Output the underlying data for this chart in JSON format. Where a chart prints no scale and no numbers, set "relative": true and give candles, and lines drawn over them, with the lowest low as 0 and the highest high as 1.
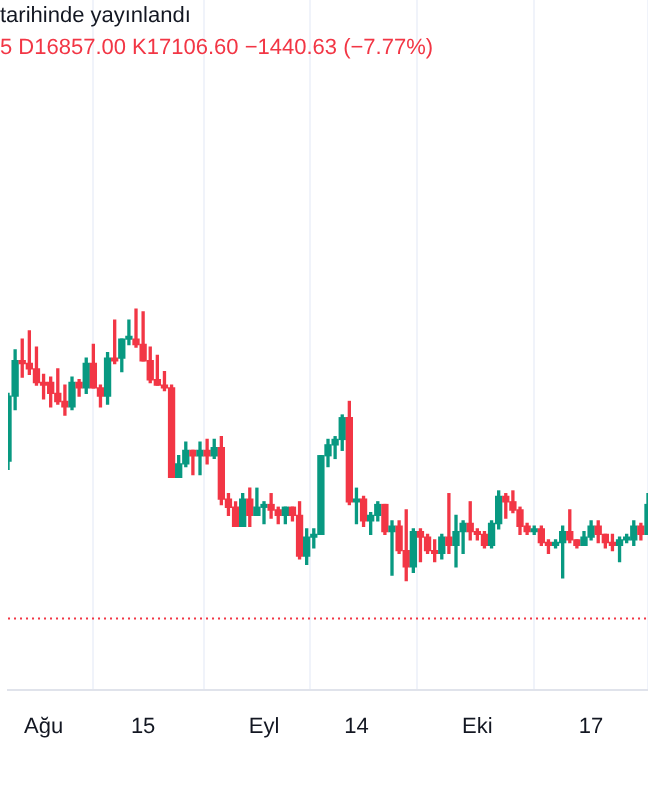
{
  "chart_data": {
    "type": "candlestick",
    "relative": true,
    "grid": "x",
    "annotations": [
      "tarihinde yayınlandı",
      "5 D16857.00 K17106.60 −1440.63 (−7.77%)"
    ],
    "xlim": [
      "--07-27",
      "--10-25"
    ],
    "xticks": [
      {
        "value": "--08-01",
        "label": "Ağu"
      },
      {
        "value": "--08-15",
        "label": "15"
      },
      {
        "value": "--09-01",
        "label": "Eyl"
      },
      {
        "value": "--09-14",
        "label": "14"
      },
      {
        "value": "--10-01",
        "label": "Eki"
      },
      {
        "value": "--10-17",
        "label": "17"
      }
    ],
    "ref_lines": [
      {
        "axis": "y",
        "value": -0.14,
        "color": "#f23645",
        "line_style": "dotted"
      }
    ],
    "x": [
      "--07-27",
      "--07-28",
      "--07-29",
      "--07-30",
      "--07-31",
      "--08-01",
      "--08-02",
      "--08-03",
      "--08-04",
      "--08-05",
      "--08-06",
      "--08-07",
      "--08-08",
      "--08-09",
      "--08-10",
      "--08-11",
      "--08-12",
      "--08-13",
      "--08-14",
      "--08-15",
      "--08-16",
      "--08-17",
      "--08-18",
      "--08-19",
      "--08-20",
      "--08-21",
      "--08-22",
      "--08-23",
      "--08-24",
      "--08-25",
      "--08-26",
      "--08-27",
      "--08-28",
      "--08-29",
      "--08-30",
      "--08-31",
      "--09-01",
      "--09-02",
      "--09-03",
      "--09-04",
      "--09-05",
      "--09-06",
      "--09-07",
      "--09-08",
      "--09-09",
      "--09-10",
      "--09-11",
      "--09-12",
      "--09-13",
      "--09-14",
      "--09-15",
      "--09-16",
      "--09-17",
      "--09-18",
      "--09-19",
      "--09-20",
      "--09-21",
      "--09-22",
      "--09-23",
      "--09-24",
      "--09-25",
      "--09-26",
      "--09-27",
      "--09-28",
      "--09-29",
      "--09-30",
      "--10-01",
      "--10-02",
      "--10-03",
      "--10-04",
      "--10-05",
      "--10-06",
      "--10-07",
      "--10-08",
      "--10-09",
      "--10-10",
      "--10-11",
      "--10-12",
      "--10-13",
      "--10-14",
      "--10-15",
      "--10-16",
      "--10-17",
      "--10-18",
      "--10-19",
      "--10-20",
      "--10-21",
      "--10-22",
      "--10-23",
      "--10-24",
      "--10-25"
    ],
    "ohlc": [
      [
        0.44,
        0.69,
        0.41,
        0.68
      ],
      [
        0.68,
        0.85,
        0.63,
        0.81
      ],
      [
        0.81,
        0.89,
        0.75,
        0.8
      ],
      [
        0.8,
        0.92,
        0.76,
        0.78
      ],
      [
        0.78,
        0.86,
        0.72,
        0.73
      ],
      [
        0.73,
        0.76,
        0.67,
        0.72
      ],
      [
        0.73,
        0.75,
        0.64,
        0.69
      ],
      [
        0.69,
        0.78,
        0.65,
        0.66
      ],
      [
        0.66,
        0.72,
        0.61,
        0.64
      ],
      [
        0.64,
        0.75,
        0.63,
        0.73
      ],
      [
        0.73,
        0.74,
        0.68,
        0.71
      ],
      [
        0.71,
        0.82,
        0.69,
        0.8
      ],
      [
        0.8,
        0.87,
        0.71,
        0.71
      ],
      [
        0.71,
        0.72,
        0.64,
        0.68
      ],
      [
        0.68,
        0.84,
        0.65,
        0.82
      ],
      [
        0.82,
        0.96,
        0.8,
        0.81
      ],
      [
        0.82,
        0.89,
        0.77,
        0.89
      ],
      [
        0.89,
        0.96,
        0.87,
        0.9
      ],
      [
        0.89,
        1,
        0.86,
        0.87
      ],
      [
        0.87,
        0.99,
        0.81,
        0.81
      ],
      [
        0.81,
        0.86,
        0.73,
        0.74
      ],
      [
        0.74,
        0.83,
        0.72,
        0.72
      ],
      [
        0.72,
        0.77,
        0.7,
        0.71
      ],
      [
        0.71,
        0.72,
        0.38,
        0.38
      ],
      [
        0.38,
        0.46,
        0.38,
        0.43
      ],
      [
        0.43,
        0.51,
        0.42,
        0.48
      ],
      [
        0.48,
        0.48,
        0.39,
        0.46
      ],
      [
        0.46,
        0.51,
        0.39,
        0.48
      ],
      [
        0.48,
        0.52,
        0.43,
        0.46
      ],
      [
        0.46,
        0.52,
        0.45,
        0.49
      ],
      [
        0.49,
        0.53,
        0.28,
        0.3
      ],
      [
        0.3,
        0.32,
        0.24,
        0.27
      ],
      [
        0.27,
        0.29,
        0.2,
        0.2
      ],
      [
        0.2,
        0.32,
        0.2,
        0.3
      ],
      [
        0.3,
        0.34,
        0.2,
        0.24
      ],
      [
        0.24,
        0.34,
        0.24,
        0.27
      ],
      [
        0.27,
        0.29,
        0.21,
        0.28
      ],
      [
        0.28,
        0.32,
        0.23,
        0.26
      ],
      [
        0.26,
        0.27,
        0.21,
        0.24
      ],
      [
        0.24,
        0.27,
        0.21,
        0.27
      ],
      [
        0.27,
        0.27,
        0.22,
        0.24
      ],
      [
        0.24,
        0.29,
        0.08,
        0.09
      ],
      [
        0.09,
        0.19,
        0.06,
        0.16
      ],
      [
        0.16,
        0.19,
        0.12,
        0.17
      ],
      [
        0.17,
        0.46,
        0.17,
        0.46
      ],
      [
        0.46,
        0.52,
        0.42,
        0.5
      ],
      [
        0.5,
        0.53,
        0.45,
        0.52
      ],
      [
        0.52,
        0.61,
        0.48,
        0.6
      ],
      [
        0.6,
        0.66,
        0.28,
        0.29
      ],
      [
        0.29,
        0.34,
        0.21,
        0.3
      ],
      [
        0.3,
        0.31,
        0.2,
        0.22
      ],
      [
        0.22,
        0.25,
        0.17,
        0.24
      ],
      [
        0.24,
        0.29,
        0.22,
        0.28
      ],
      [
        0.28,
        0.28,
        0.17,
        0.18
      ],
      [
        0.18,
        0.22,
        0.02,
        0.2
      ],
      [
        0.2,
        0.22,
        0.1,
        0.11
      ],
      [
        0.11,
        0.26,
        0,
        0.05
      ],
      [
        0.05,
        0.19,
        0.03,
        0.18
      ],
      [
        0.18,
        0.19,
        0.07,
        0.16
      ],
      [
        0.16,
        0.17,
        0.1,
        0.11
      ],
      [
        0.11,
        0.15,
        0.07,
        0.1
      ],
      [
        0.1,
        0.17,
        0.08,
        0.16
      ],
      [
        0.16,
        0.32,
        0.1,
        0.13
      ],
      [
        0.13,
        0.24,
        0.05,
        0.18
      ],
      [
        0.18,
        0.22,
        0.1,
        0.21
      ],
      [
        0.21,
        0.29,
        0.15,
        0.18
      ],
      [
        0.18,
        0.19,
        0.15,
        0.17
      ],
      [
        0.17,
        0.18,
        0.12,
        0.13
      ],
      [
        0.13,
        0.22,
        0.12,
        0.21
      ],
      [
        0.21,
        0.33,
        0.19,
        0.31
      ],
      [
        0.31,
        0.32,
        0.23,
        0.29
      ],
      [
        0.29,
        0.33,
        0.25,
        0.26
      ],
      [
        0.26,
        0.27,
        0.17,
        0.2
      ],
      [
        0.2,
        0.21,
        0.17,
        0.18
      ],
      [
        0.18,
        0.2,
        0.17,
        0.19
      ],
      [
        0.19,
        0.2,
        0.13,
        0.14
      ],
      [
        0.14,
        0.15,
        0.1,
        0.13
      ],
      [
        0.13,
        0.15,
        0.12,
        0.14
      ],
      [
        0.14,
        0.2,
        0.01,
        0.18
      ],
      [
        0.18,
        0.26,
        0.14,
        0.15
      ],
      [
        0.15,
        0.15,
        0.12,
        0.13
      ],
      [
        0.13,
        0.18,
        0.13,
        0.16
      ],
      [
        0.16,
        0.22,
        0.15,
        0.2
      ],
      [
        0.2,
        0.22,
        0.14,
        0.17
      ],
      [
        0.17,
        0.17,
        0.12,
        0.14
      ],
      [
        0.14,
        0.17,
        0.11,
        0.13
      ],
      [
        0.13,
        0.16,
        0.07,
        0.15
      ],
      [
        0.15,
        0.17,
        0.14,
        0.16
      ],
      [
        0.15,
        0.22,
        0.13,
        0.2
      ],
      [
        0.2,
        0.21,
        0.15,
        0.17
      ],
      [
        0.17,
        0.32,
        0.17,
        0.28
      ]
    ],
    "colors": [
      "#089981",
      "#089981",
      "#f23645",
      "#f23645",
      "#f23645",
      "#f23645",
      "#f23645",
      "#f23645",
      "#f23645",
      "#089981",
      "#f23645",
      "#089981",
      "#f23645",
      "#f23645",
      "#089981",
      "#f23645",
      "#089981",
      "#089981",
      "#f23645",
      "#f23645",
      "#f23645",
      "#f23645",
      "#f23645",
      "#f23645",
      "#089981",
      "#089981",
      "#f23645",
      "#089981",
      "#f23645",
      "#089981",
      "#f23645",
      "#f23645",
      "#f23645",
      "#089981",
      "#f23645",
      "#089981",
      "#089981",
      "#f23645",
      "#f23645",
      "#089981",
      "#f23645",
      "#f23645",
      "#089981",
      "#089981",
      "#089981",
      "#089981",
      "#089981",
      "#089981",
      "#f23645",
      "#089981",
      "#f23645",
      "#089981",
      "#089981",
      "#f23645",
      "#089981",
      "#f23645",
      "#f23645",
      "#089981",
      "#f23645",
      "#f23645",
      "#f23645",
      "#089981",
      "#f23645",
      "#089981",
      "#089981",
      "#f23645",
      "#f23645",
      "#f23645",
      "#089981",
      "#089981",
      "#f23645",
      "#f23645",
      "#f23645",
      "#f23645",
      "#089981",
      "#f23645",
      "#f23645",
      "#089981",
      "#089981",
      "#f23645",
      "#f23645",
      "#089981",
      "#089981",
      "#f23645",
      "#f23645",
      "#f23645",
      "#089981",
      "#089981",
      "#089981",
      "#f23645",
      "#089981"
    ]
  }
}
